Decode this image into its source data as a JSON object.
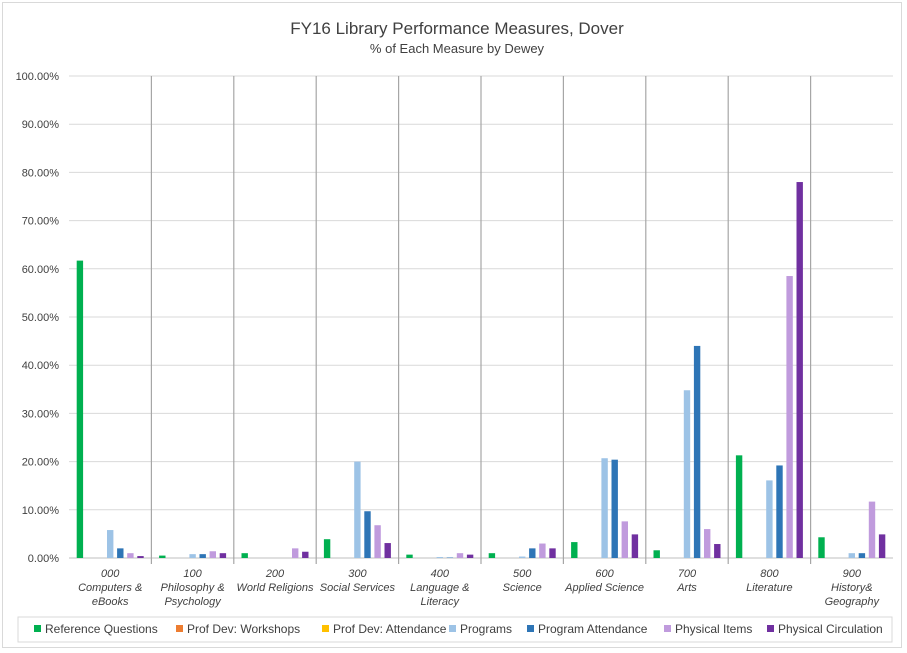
{
  "chart_data": {
    "type": "bar",
    "title": "FY16 Library Performance Measures, Dover",
    "subtitle": "% of Each Measure by Dewey",
    "xlabel": "",
    "ylabel": "",
    "ylim": [
      0,
      100
    ],
    "yticks": [
      "0.00%",
      "10.00%",
      "20.00%",
      "30.00%",
      "40.00%",
      "50.00%",
      "60.00%",
      "70.00%",
      "80.00%",
      "90.00%",
      "100.00%"
    ],
    "grid": true,
    "legend": "bottom",
    "categories": [
      [
        "000",
        "Computers &",
        "eBooks"
      ],
      [
        "100",
        "Philosophy &",
        "Psychology"
      ],
      [
        "200",
        "World Religions"
      ],
      [
        "300",
        "Social Services"
      ],
      [
        "400",
        "Language &",
        "Literacy"
      ],
      [
        "500",
        "Science"
      ],
      [
        "600",
        "Applied Science"
      ],
      [
        "700",
        "Arts"
      ],
      [
        "800",
        "Literature"
      ],
      [
        "900",
        "History&",
        "Geography"
      ]
    ],
    "series": [
      {
        "name": "Reference Questions",
        "color": "#00b050",
        "values": [
          61.7,
          0.5,
          1.0,
          3.9,
          0.7,
          1.0,
          3.3,
          1.6,
          21.3,
          4.3
        ]
      },
      {
        "name": "Prof Dev: Workshops",
        "color": "#ed7d31",
        "values": [
          0,
          0,
          0,
          0,
          0,
          0,
          0,
          0,
          0,
          0
        ]
      },
      {
        "name": "Prof Dev: Attendance",
        "color": "#ffc000",
        "values": [
          0,
          0,
          0,
          0,
          0,
          0,
          0,
          0,
          0,
          0
        ]
      },
      {
        "name": "Programs",
        "color": "#9dc3e6",
        "values": [
          5.8,
          0.8,
          0,
          20.0,
          0.2,
          0.3,
          20.7,
          34.8,
          16.1,
          1.0
        ]
      },
      {
        "name": "Program Attendance",
        "color": "#2e75b6",
        "values": [
          2.0,
          0.8,
          0,
          9.7,
          0.1,
          2.0,
          20.4,
          44.0,
          19.2,
          1.0
        ]
      },
      {
        "name": "Physical Items",
        "color": "#c09bdd",
        "values": [
          1.0,
          1.4,
          2.0,
          6.8,
          1.0,
          3.0,
          7.6,
          6.0,
          58.5,
          11.7
        ]
      },
      {
        "name": "Physical Circulation",
        "color": "#7030a0",
        "values": [
          0.4,
          1.0,
          1.3,
          3.1,
          0.7,
          2.0,
          4.9,
          2.9,
          78.0,
          4.9
        ]
      }
    ]
  }
}
